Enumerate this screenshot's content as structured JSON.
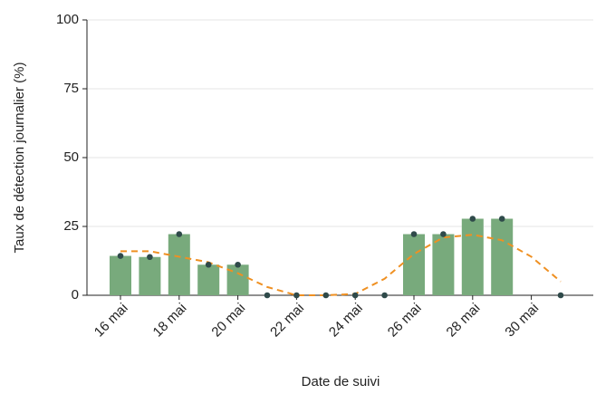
{
  "chart_data": {
    "type": "bar",
    "y_label": "Taux de détection journalier (%)",
    "x_label": "Date de suivi",
    "categories": [
      "16 mai",
      null,
      "18 mai",
      null,
      "20 mai",
      null,
      "22 mai",
      null,
      "24 mai",
      null,
      "26 mai",
      null,
      "28 mai",
      null,
      "30 mai",
      null
    ],
    "values": [
      14.3,
      13.9,
      22.2,
      11.1,
      11.1,
      0,
      0,
      0,
      0,
      0,
      22.2,
      22.2,
      27.8,
      27.8,
      null,
      0
    ],
    "color": "#78aa7c",
    "point_color": "#2f4a4a",
    "trend": {
      "color": "#ef9022",
      "values": [
        16,
        16,
        14,
        12,
        8,
        3,
        0,
        0,
        0.5,
        6,
        15,
        21,
        22,
        20,
        14,
        5
      ]
    },
    "ylim": [
      0,
      100
    ],
    "yticks": [
      0,
      25,
      50,
      75,
      100
    ],
    "grid": true
  }
}
